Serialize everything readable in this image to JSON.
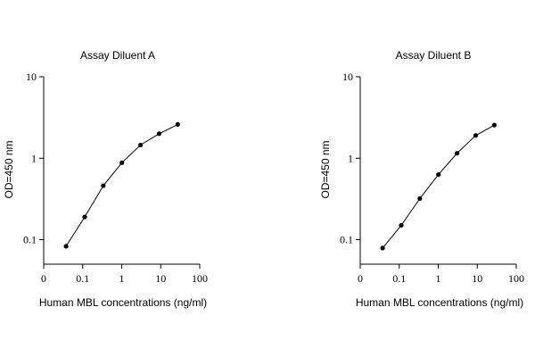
{
  "chart_data": [
    {
      "type": "line",
      "title": "Assay Diluent A",
      "xlabel": "Human MBL concentrations (ng/ml)",
      "ylabel": "OD=450 nm",
      "xscale": "log",
      "yscale": "log",
      "x_ticks": [
        "0",
        "0.1",
        "1",
        "10",
        "100"
      ],
      "y_ticks": [
        "0.1",
        "1",
        "10"
      ],
      "x_ticks_values": [
        0.01,
        0.1,
        1,
        10,
        100
      ],
      "y_ticks_values": [
        0.1,
        1,
        10
      ],
      "xlim": [
        0.01,
        100
      ],
      "ylim": [
        0.05,
        10
      ],
      "grid": false,
      "x": [
        0.0375,
        0.1125,
        0.3375,
        1.0125,
        3.0375,
        9.1125,
        27.3375
      ],
      "y": [
        0.083,
        0.19,
        0.46,
        0.88,
        1.45,
        2.0,
        2.6
      ]
    },
    {
      "type": "line",
      "title": "Assay Diluent B",
      "xlabel": "Human MBL concentrations (ng/ml)",
      "ylabel": "OD=450 nm",
      "xscale": "log",
      "yscale": "log",
      "x_ticks": [
        "0",
        "0.1",
        "1",
        "10",
        "100"
      ],
      "y_ticks": [
        "0.1",
        "1",
        "10"
      ],
      "x_ticks_values": [
        0.01,
        0.1,
        1,
        10,
        100
      ],
      "y_ticks_values": [
        0.1,
        1,
        10
      ],
      "xlim": [
        0.01,
        100
      ],
      "ylim": [
        0.05,
        10
      ],
      "grid": false,
      "x": [
        0.0375,
        0.1125,
        0.3375,
        1.0125,
        3.0375,
        9.1125,
        27.3375
      ],
      "y": [
        0.079,
        0.15,
        0.32,
        0.63,
        1.15,
        1.9,
        2.55
      ]
    }
  ]
}
